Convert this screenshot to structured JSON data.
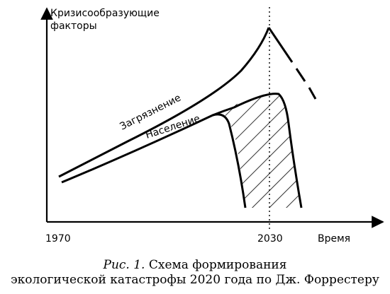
{
  "diagram": {
    "y_axis_label_line1": "Кризисообразующие",
    "y_axis_label_line2": "факторы",
    "x_axis_label": "Время",
    "x_tick_start": "1970",
    "x_tick_marker": "2030",
    "curve_pollution_label": "Загрязнение",
    "curve_population_label": "Население"
  },
  "caption": {
    "figure_number": "Рис. 1.",
    "line1_text": "Схема формирования",
    "line2_text": "экологической катастрофы 2020 года по Дж. Форрестеру"
  }
}
